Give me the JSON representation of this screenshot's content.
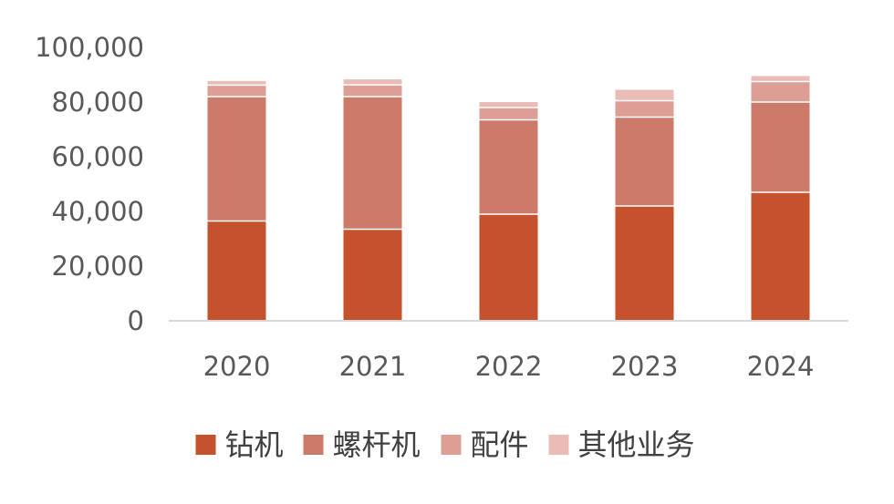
{
  "chart_data": {
    "type": "bar",
    "stacked": true,
    "categories": [
      "2020",
      "2021",
      "2022",
      "2023",
      "2024"
    ],
    "series": [
      {
        "name": "钻机",
        "values": [
          36500,
          33500,
          39000,
          42000,
          47000
        ],
        "color": "#c5522c"
      },
      {
        "name": "螺杆机",
        "values": [
          45500,
          48500,
          34500,
          32500,
          33000
        ],
        "color": "#cc7b6b"
      },
      {
        "name": "配件",
        "values": [
          4200,
          4300,
          4500,
          6000,
          7500
        ],
        "color": "#dd9f95"
      },
      {
        "name": "其他业务",
        "values": [
          1500,
          2000,
          2000,
          4000,
          2000
        ],
        "color": "#ebbcb5"
      }
    ],
    "ylim": [
      0,
      100000
    ],
    "yticks": [
      "0",
      "20,000",
      "40,000",
      "60,000",
      "80,000",
      "100,000"
    ],
    "ytick_values": [
      0,
      20000,
      40000,
      60000,
      80000,
      100000
    ],
    "grid": false,
    "legend_position": "bottom"
  }
}
